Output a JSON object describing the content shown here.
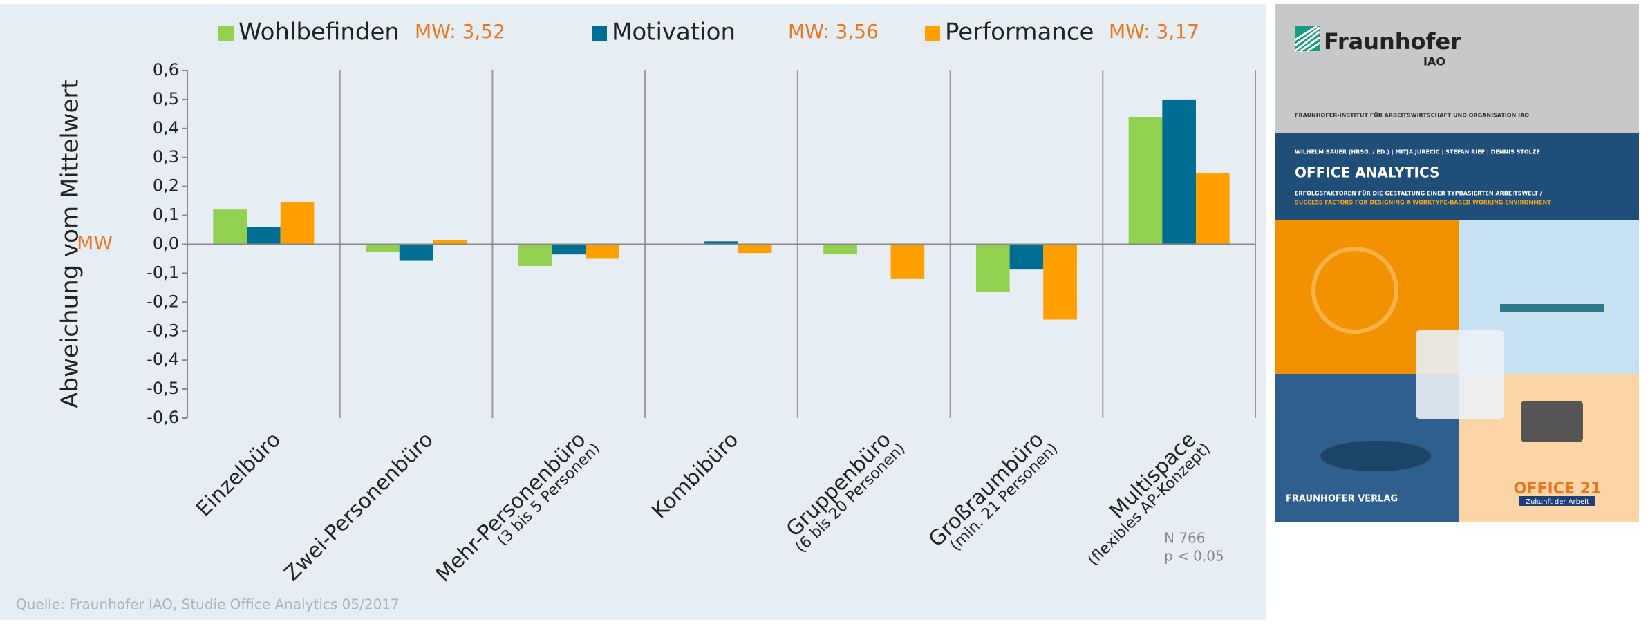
{
  "chart_data": {
    "type": "bar",
    "categories": [
      "Einzelbüro",
      "Zwei-Personenbüro",
      "Mehr-Personenbüro",
      "Kombibüro",
      "Gruppenbüro",
      "Großraumbüro",
      "Multispace"
    ],
    "category_subtitles": [
      null,
      null,
      "(3 bis 5 Personen)",
      null,
      "(6 bis 20 Personen)",
      "(min. 21 Personen)",
      "(flexibles AP-Konzept)"
    ],
    "series": [
      {
        "name": "Wohlbefinden",
        "mean_label": "MW: 3,52",
        "color": "#92d050",
        "values": [
          0.12,
          -0.025,
          -0.075,
          -0.003,
          -0.035,
          -0.165,
          0.44
        ]
      },
      {
        "name": "Motivation",
        "mean_label": "MW: 3,56",
        "color": "#006e92",
        "values": [
          0.06,
          -0.055,
          -0.035,
          0.01,
          0.0,
          -0.085,
          0.5
        ]
      },
      {
        "name": "Performance",
        "mean_label": "MW: 3,17",
        "color": "#ff9f00",
        "values": [
          0.145,
          0.015,
          -0.05,
          -0.03,
          -0.12,
          -0.26,
          0.245
        ]
      }
    ],
    "y_label": "Abweichung vom Mittelwert",
    "zero_label": "MW",
    "ylim": [
      -0.6,
      0.6
    ],
    "yticks": [
      {
        "value": 0.6,
        "label": "0,6"
      },
      {
        "value": 0.5,
        "label": "0,5"
      },
      {
        "value": 0.4,
        "label": "0,4"
      },
      {
        "value": 0.3,
        "label": "0,3"
      },
      {
        "value": 0.2,
        "label": "0,2"
      },
      {
        "value": 0.1,
        "label": "0,1"
      },
      {
        "value": 0.0,
        "label": "0,0"
      },
      {
        "value": -0.1,
        "label": "-0,1"
      },
      {
        "value": -0.2,
        "label": "-0,2"
      },
      {
        "value": -0.3,
        "label": "-0,3"
      },
      {
        "value": -0.4,
        "label": "-0,4"
      },
      {
        "value": -0.5,
        "label": "-0,5"
      },
      {
        "value": -0.6,
        "label": "-0,6"
      }
    ],
    "notes": [
      "N 766",
      "p < 0,05"
    ],
    "source": "Quelle: Fraunhofer IAO, Studie Office Analytics 05/2017"
  },
  "cover": {
    "logo": "Fraunhofer",
    "logo_sub": "IAO",
    "institute": "FRAUNHOFER-INSTITUT FÜR ARBEITSWIRTSCHAFT UND ORGANISATION IAO",
    "authors": "WILHELM BAUER (HRSG. / ED.) | MITJA JURECIC | STEFAN RIEF | DENNIS STOLZE",
    "title": "OFFICE ANALYTICS",
    "subtitle": "ERFOLGSFAKTOREN FÜR DIE GESTALTUNG EINER TYPBASIERTEN ARBEITSWELT /",
    "subtitle_en": "SUCCESS FACTORS FOR DESIGNING A WORKTYPE-BASED WORKING ENVIRONMENT",
    "publisher": "FRAUNHOFER VERLAG",
    "brand": "OFFICE 21",
    "brand_sub": "Zukunft der Arbeit"
  }
}
